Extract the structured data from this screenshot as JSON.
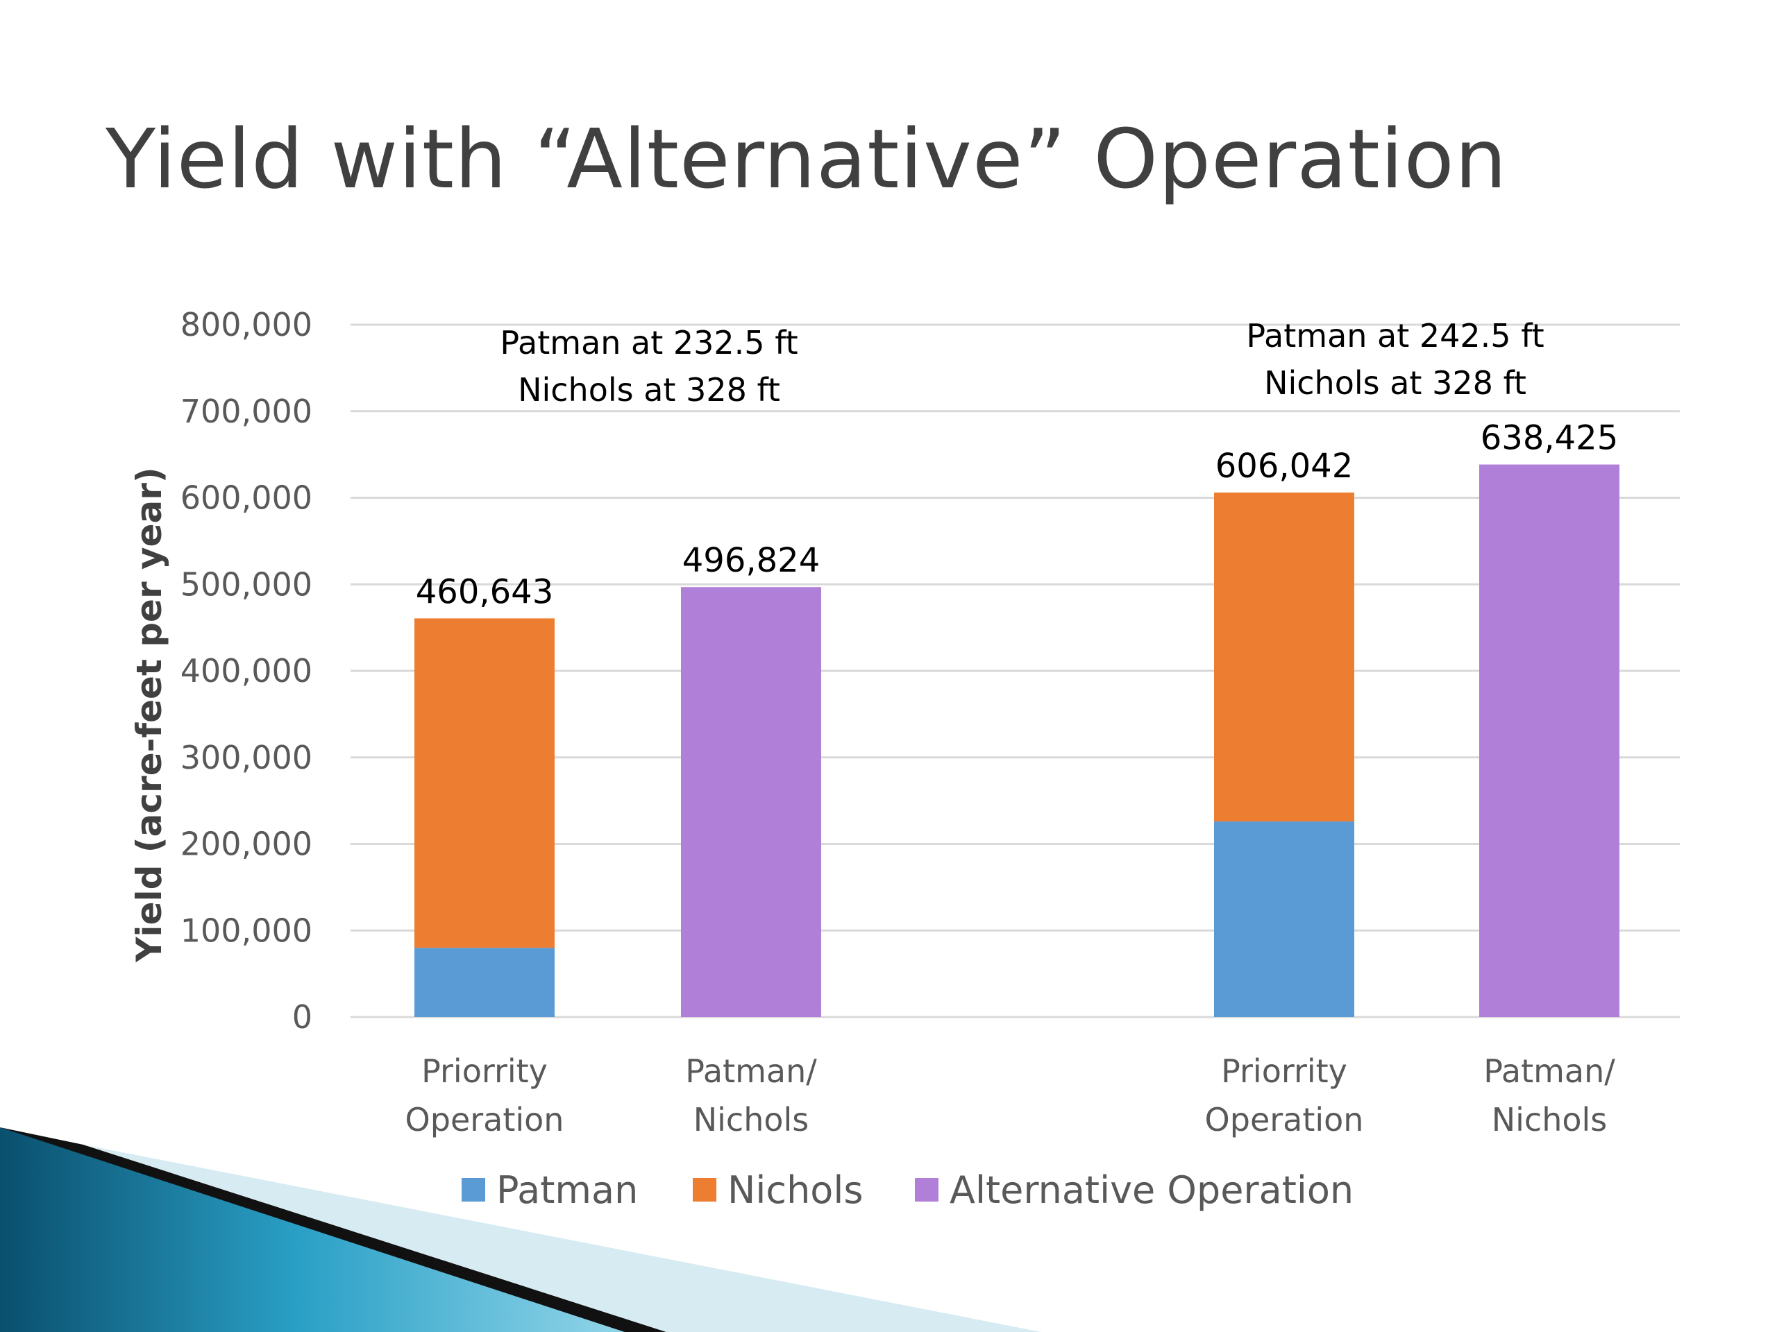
{
  "slide": {
    "title": "Yield with “Alternative” Operation"
  },
  "colors": {
    "patman": "#5b9bd5",
    "nichols": "#ed7d31",
    "alternative": "#b07fd8",
    "grid": "#d9d9d9",
    "accent_dark": "#0a4f6e",
    "accent_light": "#5ec0de"
  },
  "chart_data": {
    "type": "bar",
    "stacked": true,
    "ylabel": "Yield (acre-feet per year)",
    "ylim": [
      0,
      800000
    ],
    "yticks": [
      0,
      100000,
      200000,
      300000,
      400000,
      500000,
      600000,
      700000,
      800000
    ],
    "ytick_labels": [
      "0",
      "100,000",
      "200,000",
      "300,000",
      "400,000",
      "500,000",
      "600,000",
      "700,000",
      "800,000"
    ],
    "grid": true,
    "legend_position": "bottom",
    "categories": [
      [
        "Priorrity",
        "Operation"
      ],
      [
        "Patman/",
        "Nichols"
      ],
      [
        "Priorrity",
        "Operation"
      ],
      [
        "Patman/",
        "Nichols"
      ]
    ],
    "series": [
      {
        "name": "Patman",
        "color_key": "patman",
        "values": [
          80000,
          0,
          226000,
          0
        ]
      },
      {
        "name": "Nichols",
        "color_key": "nichols",
        "values": [
          380643,
          0,
          380042,
          0
        ]
      },
      {
        "name": "Alternative Operation",
        "color_key": "alternative",
        "values": [
          0,
          496824,
          0,
          638425
        ]
      }
    ],
    "totals": [
      460643,
      496824,
      606042,
      638425
    ],
    "total_labels": [
      "460,643",
      "496,824",
      "606,042",
      "638,425"
    ],
    "annotations": [
      {
        "lines": [
          "Patman at 232.5 ft",
          "Nichols at 328 ft"
        ]
      },
      {
        "lines": [
          "Patman at 242.5 ft",
          "Nichols at 328 ft"
        ]
      }
    ]
  }
}
